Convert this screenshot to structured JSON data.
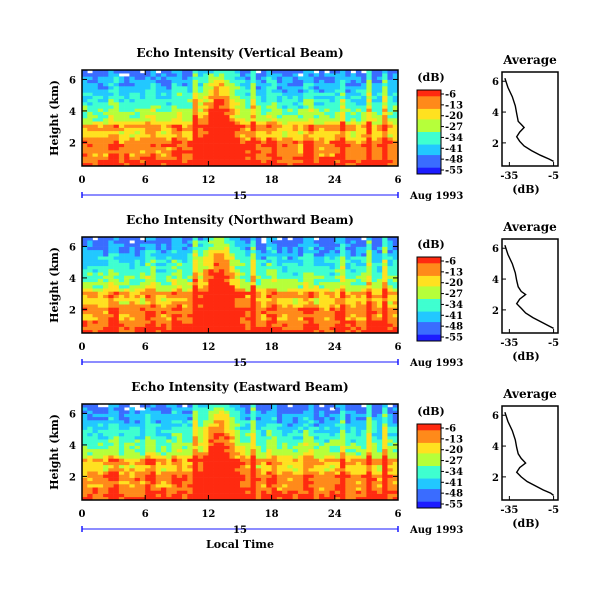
{
  "chart_data": [
    {
      "type": "heatmap",
      "title": "Echo Intensity (Vertical Beam)",
      "ylabel": "Height (km)",
      "yticks": [
        "2",
        "4",
        "6"
      ],
      "ylim": [
        0.5,
        6.6
      ],
      "xticks": [
        "0",
        "6",
        "12",
        "18",
        "24",
        "6"
      ],
      "xlim": [
        0,
        30
      ],
      "date_label": "15",
      "date_suffix": "Aug 1993",
      "colorbar": {
        "unit": "(dB)",
        "ticks": [
          "-6",
          "-13",
          "-20",
          "-27",
          "-34",
          "-41",
          "-48",
          "-55"
        ]
      },
      "profile": {
        "title": "Average",
        "xlabel": "(dB)",
        "xticks": [
          "-35",
          "-5"
        ],
        "yticks": [
          "2",
          "4",
          "6"
        ],
        "xlim": [
          -40,
          -2
        ],
        "ylim": [
          0.5,
          6.6
        ],
        "values": [
          {
            "height": 6.2,
            "db": -38
          },
          {
            "height": 5.6,
            "db": -36
          },
          {
            "height": 5.0,
            "db": -33
          },
          {
            "height": 4.4,
            "db": -31
          },
          {
            "height": 3.9,
            "db": -30
          },
          {
            "height": 3.4,
            "db": -29
          },
          {
            "height": 3.2,
            "db": -27
          },
          {
            "height": 3.0,
            "db": -25
          },
          {
            "height": 2.7,
            "db": -28
          },
          {
            "height": 2.4,
            "db": -30
          },
          {
            "height": 2.1,
            "db": -28
          },
          {
            "height": 1.8,
            "db": -25
          },
          {
            "height": 1.5,
            "db": -20
          },
          {
            "height": 1.2,
            "db": -14
          },
          {
            "height": 0.95,
            "db": -8
          },
          {
            "height": 0.8,
            "db": -5
          }
        ]
      }
    },
    {
      "type": "heatmap",
      "title": "Echo Intensity (Northward Beam)",
      "ylabel": "Height (km)",
      "yticks": [
        "2",
        "4",
        "6"
      ],
      "ylim": [
        0.5,
        6.6
      ],
      "xticks": [
        "0",
        "6",
        "12",
        "18",
        "24",
        "6"
      ],
      "xlim": [
        0,
        30
      ],
      "date_label": "15",
      "date_suffix": "Aug 1993",
      "colorbar": {
        "unit": "(dB)",
        "ticks": [
          "-6",
          "-13",
          "-20",
          "-27",
          "-34",
          "-41",
          "-48",
          "-55"
        ]
      },
      "profile": {
        "title": "Average",
        "xlabel": "(dB)",
        "xticks": [
          "-35",
          "-5"
        ],
        "yticks": [
          "2",
          "4",
          "6"
        ],
        "xlim": [
          -40,
          -2
        ],
        "ylim": [
          0.5,
          6.6
        ],
        "values": [
          {
            "height": 6.2,
            "db": -38
          },
          {
            "height": 5.6,
            "db": -36
          },
          {
            "height": 5.0,
            "db": -33
          },
          {
            "height": 4.4,
            "db": -31
          },
          {
            "height": 3.9,
            "db": -30
          },
          {
            "height": 3.5,
            "db": -29
          },
          {
            "height": 3.2,
            "db": -27
          },
          {
            "height": 3.0,
            "db": -24
          },
          {
            "height": 2.7,
            "db": -28
          },
          {
            "height": 2.4,
            "db": -30
          },
          {
            "height": 2.1,
            "db": -27
          },
          {
            "height": 1.8,
            "db": -24
          },
          {
            "height": 1.5,
            "db": -19
          },
          {
            "height": 1.2,
            "db": -13
          },
          {
            "height": 0.95,
            "db": -8
          },
          {
            "height": 0.8,
            "db": -5
          }
        ]
      }
    },
    {
      "type": "heatmap",
      "title": "Echo Intensity (Eastward Beam)",
      "ylabel": "Height (km)",
      "yticks": [
        "2",
        "4",
        "6"
      ],
      "ylim": [
        0.5,
        6.6
      ],
      "xticks": [
        "0",
        "6",
        "12",
        "18",
        "24",
        "6"
      ],
      "xlim": [
        0,
        30
      ],
      "date_label": "15",
      "date_suffix": "Aug 1993",
      "xlabel": "Local Time",
      "colorbar": {
        "unit": "(dB)",
        "ticks": [
          "-6",
          "-13",
          "-20",
          "-27",
          "-34",
          "-41",
          "-48",
          "-55"
        ]
      },
      "profile": {
        "title": "Average",
        "xlabel": "(dB)",
        "xticks": [
          "-35",
          "-5"
        ],
        "yticks": [
          "2",
          "4",
          "6"
        ],
        "xlim": [
          -40,
          -2
        ],
        "ylim": [
          0.5,
          6.6
        ],
        "values": [
          {
            "height": 6.2,
            "db": -38
          },
          {
            "height": 5.6,
            "db": -36
          },
          {
            "height": 5.0,
            "db": -33
          },
          {
            "height": 4.4,
            "db": -31
          },
          {
            "height": 3.9,
            "db": -30
          },
          {
            "height": 3.5,
            "db": -29
          },
          {
            "height": 3.2,
            "db": -27
          },
          {
            "height": 2.9,
            "db": -24
          },
          {
            "height": 2.6,
            "db": -28
          },
          {
            "height": 2.3,
            "db": -30
          },
          {
            "height": 2.0,
            "db": -27
          },
          {
            "height": 1.7,
            "db": -23
          },
          {
            "height": 1.4,
            "db": -17
          },
          {
            "height": 1.15,
            "db": -12
          },
          {
            "height": 0.95,
            "db": -7
          },
          {
            "height": 0.8,
            "db": -5
          }
        ]
      }
    }
  ],
  "colors": {
    "scale": [
      "#1c1cff",
      "#3a6cff",
      "#22c8ff",
      "#3fffd0",
      "#b6ff3a",
      "#ffe120",
      "#ff8a1a",
      "#ff2a10"
    ],
    "date_axis": "#1a1aff"
  }
}
